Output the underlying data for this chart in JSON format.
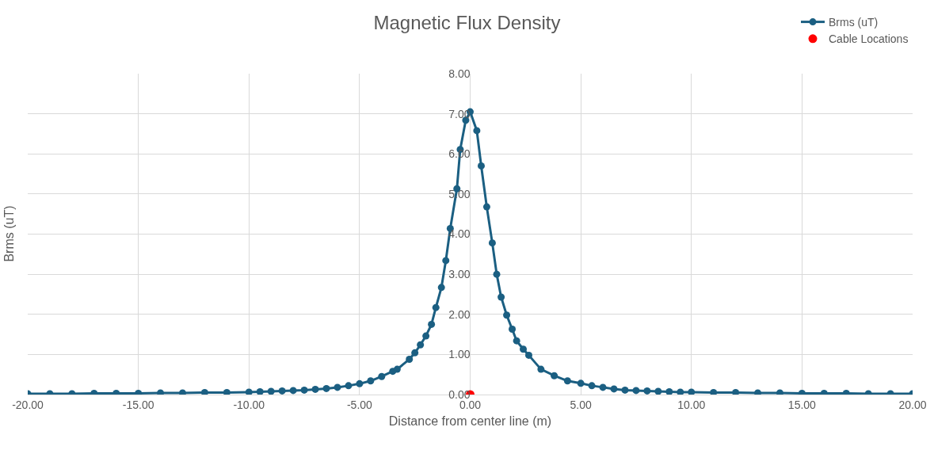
{
  "chart_data": {
    "type": "line",
    "title": "Magnetic Flux Density",
    "xlabel": "Distance from center line (m)",
    "ylabel": "Brms (uT)",
    "xlim": [
      -20,
      20
    ],
    "xticks": [
      {
        "value": -20,
        "label": "-20.00"
      },
      {
        "value": -15,
        "label": "-15.00"
      },
      {
        "value": -10,
        "label": "-10.00"
      },
      {
        "value": -5,
        "label": "-5.00"
      },
      {
        "value": 0,
        "label": "0.00"
      },
      {
        "value": 5,
        "label": "5.00"
      },
      {
        "value": 10,
        "label": "10.00"
      },
      {
        "value": 15,
        "label": "15.00"
      },
      {
        "value": 20,
        "label": "20.00"
      }
    ],
    "ylim": [
      0,
      8
    ],
    "yticks": [
      {
        "value": 0,
        "label": "0.00"
      },
      {
        "value": 1,
        "label": "1.00"
      },
      {
        "value": 2,
        "label": "2.00"
      },
      {
        "value": 3,
        "label": "3.00"
      },
      {
        "value": 4,
        "label": "4.00"
      },
      {
        "value": 5,
        "label": "5.00"
      },
      {
        "value": 6,
        "label": "6.00"
      },
      {
        "value": 7,
        "label": "7.00"
      },
      {
        "value": 8,
        "label": "8.00"
      }
    ],
    "grid": true,
    "legend": "top right",
    "marker": "circle",
    "line_style": "solid",
    "series": [
      {
        "name": "Brms (uT)",
        "color": "#1b5f82",
        "x": [
          -20,
          -19,
          -18,
          -17,
          -16,
          -15,
          -14,
          -13,
          -12,
          -11,
          -10,
          -9.5,
          -9,
          -8.5,
          -8,
          -7.5,
          -7,
          -6.5,
          -6,
          -5.5,
          -5,
          -4.5,
          -4,
          -3.5,
          -3.3,
          -2.75,
          -2.5,
          -2.25,
          -2,
          -1.75,
          -1.55,
          -1.3,
          -1.1,
          -0.9,
          -0.6,
          -0.45,
          -0.2,
          0,
          0.3,
          0.5,
          0.75,
          1,
          1.2,
          1.4,
          1.65,
          1.9,
          2.1,
          2.4,
          2.65,
          3.2,
          3.8,
          4.4,
          5,
          5.5,
          6,
          6.5,
          7,
          7.5,
          8,
          8.5,
          9,
          9.5,
          10,
          11,
          12,
          13,
          14,
          15,
          16,
          17,
          18,
          19,
          20
        ],
        "values": [
          0.02,
          0.02,
          0.02,
          0.03,
          0.03,
          0.03,
          0.04,
          0.04,
          0.05,
          0.05,
          0.06,
          0.07,
          0.08,
          0.09,
          0.1,
          0.11,
          0.13,
          0.15,
          0.18,
          0.22,
          0.27,
          0.34,
          0.45,
          0.58,
          0.63,
          0.88,
          1.04,
          1.24,
          1.46,
          1.75,
          2.17,
          2.67,
          3.34,
          4.14,
          5.13,
          6.11,
          6.84,
          7.05,
          6.58,
          5.7,
          4.68,
          3.78,
          3.0,
          2.43,
          1.98,
          1.63,
          1.34,
          1.13,
          0.98,
          0.63,
          0.47,
          0.34,
          0.28,
          0.22,
          0.18,
          0.14,
          0.11,
          0.1,
          0.09,
          0.08,
          0.07,
          0.06,
          0.06,
          0.05,
          0.05,
          0.04,
          0.04,
          0.03,
          0.03,
          0.03,
          0.02,
          0.02,
          0.02
        ]
      },
      {
        "name": "Cable Locations",
        "color": "#ff0000",
        "type": "scatter",
        "x": [
          0
        ],
        "values": [
          0
        ]
      }
    ]
  }
}
